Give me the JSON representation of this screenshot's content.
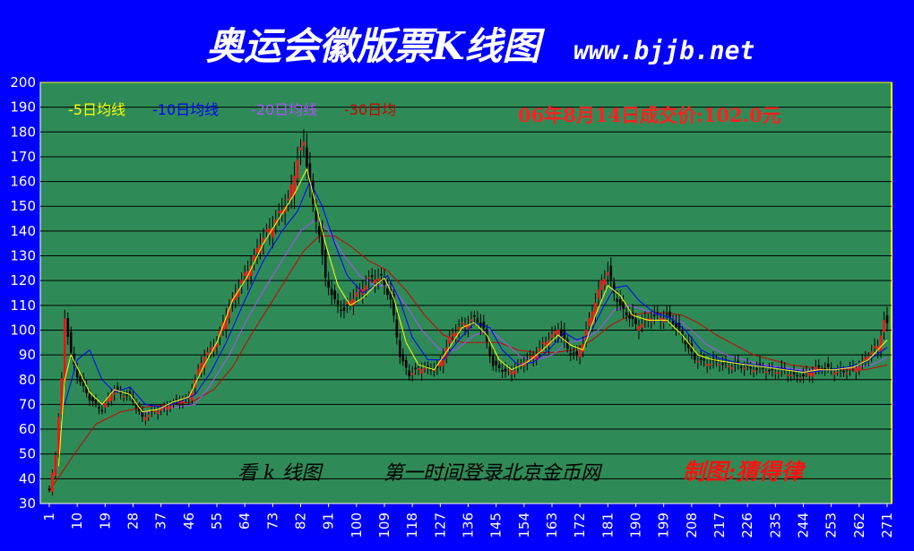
{
  "chart_data": {
    "type": "candlestick",
    "title": "奥运会徽版票K线图",
    "source_url": "www.bjjb.net",
    "price_annotation": "06年8月14日成交价:102.0元",
    "legend": [
      {
        "label": "-5日均线",
        "color": "#ffff00"
      },
      {
        "label": "-10日均线",
        "color": "#0000ff"
      },
      {
        "label": "-20日均线",
        "color": "#b050ff"
      },
      {
        "label": "-30日均",
        "color": "#cc0000"
      }
    ],
    "bottom_left_note": "看 k 线图",
    "bottom_mid_note": "第一时间登录北京金币网",
    "author_note": "制图:猜得律",
    "ylim": [
      30,
      200
    ],
    "ytick_step": 10,
    "xlim": [
      1,
      271
    ],
    "x_tick_labels": [
      "1",
      "10",
      "19",
      "28",
      "37",
      "46",
      "55",
      "64",
      "73",
      "82",
      "91",
      "100",
      "109",
      "118",
      "127",
      "136",
      "145",
      "154",
      "163",
      "172",
      "181",
      "190",
      "199",
      "208",
      "217",
      "226",
      "235",
      "244",
      "253",
      "262",
      "271"
    ],
    "close_path": [
      [
        1,
        35
      ],
      [
        3,
        50
      ],
      [
        5,
        80
      ],
      [
        6,
        105
      ],
      [
        8,
        90
      ],
      [
        10,
        82
      ],
      [
        14,
        72
      ],
      [
        18,
        68
      ],
      [
        22,
        76
      ],
      [
        27,
        73
      ],
      [
        31,
        65
      ],
      [
        35,
        67
      ],
      [
        40,
        70
      ],
      [
        46,
        73
      ],
      [
        51,
        90
      ],
      [
        55,
        95
      ],
      [
        59,
        110
      ],
      [
        64,
        122
      ],
      [
        69,
        135
      ],
      [
        74,
        145
      ],
      [
        78,
        152
      ],
      [
        81,
        170
      ],
      [
        83,
        175
      ],
      [
        86,
        150
      ],
      [
        88,
        140
      ],
      [
        90,
        120
      ],
      [
        93,
        112
      ],
      [
        96,
        108
      ],
      [
        100,
        115
      ],
      [
        104,
        120
      ],
      [
        108,
        122
      ],
      [
        111,
        112
      ],
      [
        114,
        90
      ],
      [
        117,
        82
      ],
      [
        121,
        85
      ],
      [
        126,
        84
      ],
      [
        130,
        97
      ],
      [
        134,
        102
      ],
      [
        138,
        105
      ],
      [
        141,
        100
      ],
      [
        144,
        86
      ],
      [
        148,
        83
      ],
      [
        152,
        85
      ],
      [
        157,
        90
      ],
      [
        161,
        95
      ],
      [
        165,
        101
      ],
      [
        168,
        92
      ],
      [
        171,
        90
      ],
      [
        173,
        95
      ],
      [
        176,
        108
      ],
      [
        179,
        120
      ],
      [
        181,
        123
      ],
      [
        183,
        115
      ],
      [
        186,
        108
      ],
      [
        190,
        102
      ],
      [
        195,
        105
      ],
      [
        200,
        106
      ],
      [
        205,
        98
      ],
      [
        209,
        88
      ],
      [
        214,
        87
      ],
      [
        220,
        86
      ],
      [
        226,
        85
      ],
      [
        232,
        84
      ],
      [
        238,
        83
      ],
      [
        244,
        81
      ],
      [
        248,
        85
      ],
      [
        253,
        84
      ],
      [
        258,
        83
      ],
      [
        263,
        87
      ],
      [
        268,
        94
      ],
      [
        270,
        104
      ],
      [
        271,
        102
      ]
    ],
    "ma5_path": [
      [
        4,
        45
      ],
      [
        6,
        80
      ],
      [
        8,
        90
      ],
      [
        10,
        85
      ],
      [
        14,
        75
      ],
      [
        18,
        70
      ],
      [
        22,
        76
      ],
      [
        27,
        74
      ],
      [
        31,
        67
      ],
      [
        36,
        68
      ],
      [
        41,
        71
      ],
      [
        46,
        73
      ],
      [
        51,
        86
      ],
      [
        55,
        95
      ],
      [
        60,
        112
      ],
      [
        65,
        122
      ],
      [
        70,
        135
      ],
      [
        75,
        145
      ],
      [
        80,
        155
      ],
      [
        84,
        165
      ],
      [
        87,
        150
      ],
      [
        90,
        135
      ],
      [
        94,
        118
      ],
      [
        98,
        110
      ],
      [
        102,
        113
      ],
      [
        106,
        118
      ],
      [
        109,
        121
      ],
      [
        112,
        113
      ],
      [
        116,
        95
      ],
      [
        120,
        86
      ],
      [
        125,
        84
      ],
      [
        130,
        93
      ],
      [
        134,
        101
      ],
      [
        138,
        103
      ],
      [
        142,
        98
      ],
      [
        146,
        88
      ],
      [
        150,
        84
      ],
      [
        155,
        87
      ],
      [
        160,
        92
      ],
      [
        165,
        98
      ],
      [
        169,
        94
      ],
      [
        173,
        92
      ],
      [
        177,
        106
      ],
      [
        181,
        118
      ],
      [
        185,
        114
      ],
      [
        189,
        106
      ],
      [
        194,
        104
      ],
      [
        200,
        104
      ],
      [
        205,
        98
      ],
      [
        210,
        90
      ],
      [
        215,
        88
      ],
      [
        220,
        87
      ],
      [
        226,
        86
      ],
      [
        232,
        85
      ],
      [
        238,
        84
      ],
      [
        244,
        83
      ],
      [
        249,
        84
      ],
      [
        254,
        84
      ],
      [
        260,
        85
      ],
      [
        265,
        88
      ],
      [
        271,
        96
      ]
    ],
    "ma10_path": [
      [
        6,
        70
      ],
      [
        10,
        88
      ],
      [
        14,
        92
      ],
      [
        18,
        80
      ],
      [
        22,
        75
      ],
      [
        27,
        77
      ],
      [
        32,
        70
      ],
      [
        37,
        69
      ],
      [
        43,
        71
      ],
      [
        48,
        74
      ],
      [
        53,
        83
      ],
      [
        58,
        95
      ],
      [
        64,
        112
      ],
      [
        70,
        128
      ],
      [
        76,
        140
      ],
      [
        81,
        148
      ],
      [
        85,
        160
      ],
      [
        89,
        150
      ],
      [
        93,
        135
      ],
      [
        97,
        122
      ],
      [
        102,
        115
      ],
      [
        106,
        118
      ],
      [
        110,
        122
      ],
      [
        114,
        112
      ],
      [
        118,
        97
      ],
      [
        123,
        88
      ],
      [
        128,
        88
      ],
      [
        133,
        96
      ],
      [
        138,
        103
      ],
      [
        143,
        101
      ],
      [
        147,
        92
      ],
      [
        152,
        86
      ],
      [
        157,
        87
      ],
      [
        162,
        92
      ],
      [
        167,
        99
      ],
      [
        171,
        96
      ],
      [
        175,
        98
      ],
      [
        179,
        108
      ],
      [
        183,
        117
      ],
      [
        187,
        118
      ],
      [
        191,
        112
      ],
      [
        196,
        107
      ],
      [
        201,
        105
      ],
      [
        206,
        100
      ],
      [
        211,
        92
      ],
      [
        216,
        89
      ],
      [
        222,
        87
      ],
      [
        228,
        86
      ],
      [
        234,
        85
      ],
      [
        240,
        84
      ],
      [
        246,
        83
      ],
      [
        252,
        84
      ],
      [
        258,
        85
      ],
      [
        264,
        87
      ],
      [
        271,
        93
      ]
    ],
    "ma20_path": [
      [
        30,
        66
      ],
      [
        36,
        68
      ],
      [
        42,
        69
      ],
      [
        48,
        70
      ],
      [
        53,
        78
      ],
      [
        59,
        90
      ],
      [
        65,
        105
      ],
      [
        71,
        118
      ],
      [
        77,
        130
      ],
      [
        82,
        140
      ],
      [
        87,
        145
      ],
      [
        91,
        140
      ],
      [
        96,
        130
      ],
      [
        101,
        122
      ],
      [
        106,
        118
      ],
      [
        111,
        118
      ],
      [
        116,
        110
      ],
      [
        121,
        100
      ],
      [
        127,
        92
      ],
      [
        132,
        92
      ],
      [
        138,
        98
      ],
      [
        143,
        100
      ],
      [
        148,
        95
      ],
      [
        153,
        89
      ],
      [
        158,
        88
      ],
      [
        163,
        90
      ],
      [
        168,
        95
      ],
      [
        173,
        96
      ],
      [
        178,
        100
      ],
      [
        183,
        108
      ],
      [
        188,
        110
      ],
      [
        193,
        108
      ],
      [
        198,
        106
      ],
      [
        203,
        105
      ],
      [
        208,
        100
      ],
      [
        213,
        94
      ],
      [
        219,
        90
      ],
      [
        225,
        88
      ],
      [
        231,
        86
      ],
      [
        237,
        85
      ],
      [
        243,
        84
      ],
      [
        249,
        84
      ],
      [
        255,
        84
      ],
      [
        261,
        85
      ],
      [
        266,
        86
      ],
      [
        271,
        89
      ]
    ],
    "ma30_path": [
      [
        1,
        35
      ],
      [
        8,
        48
      ],
      [
        16,
        62
      ],
      [
        24,
        67
      ],
      [
        32,
        69
      ],
      [
        40,
        70
      ],
      [
        47,
        71
      ],
      [
        54,
        76
      ],
      [
        60,
        85
      ],
      [
        66,
        98
      ],
      [
        72,
        110
      ],
      [
        78,
        122
      ],
      [
        83,
        132
      ],
      [
        88,
        138
      ],
      [
        93,
        138
      ],
      [
        98,
        134
      ],
      [
        104,
        128
      ],
      [
        110,
        124
      ],
      [
        116,
        116
      ],
      [
        122,
        106
      ],
      [
        128,
        98
      ],
      [
        134,
        95
      ],
      [
        140,
        95
      ],
      [
        146,
        95
      ],
      [
        152,
        92
      ],
      [
        158,
        91
      ],
      [
        164,
        91
      ],
      [
        170,
        92
      ],
      [
        176,
        96
      ],
      [
        182,
        102
      ],
      [
        188,
        106
      ],
      [
        194,
        107
      ],
      [
        200,
        107
      ],
      [
        205,
        106
      ],
      [
        210,
        103
      ],
      [
        216,
        98
      ],
      [
        222,
        94
      ],
      [
        228,
        90
      ],
      [
        234,
        88
      ],
      [
        240,
        86
      ],
      [
        246,
        85
      ],
      [
        252,
        84
      ],
      [
        258,
        84
      ],
      [
        264,
        84
      ],
      [
        271,
        86
      ]
    ]
  }
}
